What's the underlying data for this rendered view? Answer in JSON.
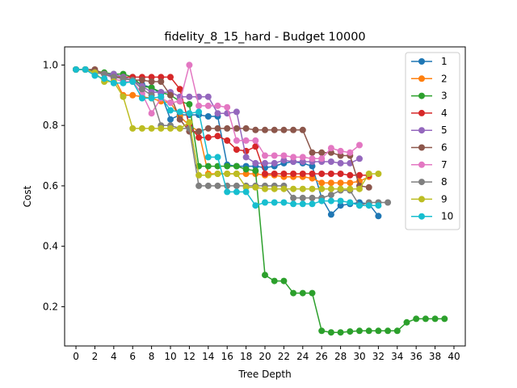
{
  "chart_data": {
    "type": "line",
    "title": "fidelity_8_15_hard - Budget  10000",
    "xlabel": "Tree Depth",
    "ylabel": "Cost",
    "xlim": [
      -1.2,
      41.2
    ],
    "ylim": [
      0.07,
      1.06
    ],
    "xticks": [
      0,
      2,
      4,
      6,
      8,
      10,
      12,
      14,
      16,
      18,
      20,
      22,
      24,
      26,
      28,
      30,
      32,
      34,
      36,
      38,
      40
    ],
    "yticks": [
      0.2,
      0.4,
      0.6,
      0.8,
      1.0
    ],
    "xtick_labels": [
      "0",
      "2",
      "4",
      "6",
      "8",
      "10",
      "12",
      "14",
      "16",
      "18",
      "20",
      "22",
      "24",
      "26",
      "28",
      "30",
      "32",
      "34",
      "36",
      "38",
      "40"
    ],
    "ytick_labels": [
      "0.2",
      "0.4",
      "0.6",
      "0.8",
      "1.0"
    ],
    "grid": false,
    "legend_position": "top-right",
    "series": [
      {
        "name": "1",
        "color": "#1f77b4",
        "x": [
          0,
          1,
          2,
          3,
          4,
          5,
          6,
          7,
          8,
          9,
          10,
          11,
          12,
          13,
          14,
          15,
          16,
          17,
          18,
          19,
          20,
          21,
          22,
          23,
          24,
          25,
          26,
          27,
          28,
          29,
          30,
          31,
          32
        ],
        "y": [
          0.985,
          0.985,
          0.975,
          0.97,
          0.965,
          0.955,
          0.95,
          0.935,
          0.925,
          0.905,
          0.82,
          0.835,
          0.835,
          0.835,
          0.83,
          0.83,
          0.67,
          0.665,
          0.665,
          0.665,
          0.66,
          0.665,
          0.675,
          0.68,
          0.675,
          0.665,
          0.56,
          0.505,
          0.535,
          0.54,
          0.545,
          0.54,
          0.5
        ]
      },
      {
        "name": "2",
        "color": "#ff7f0e",
        "x": [
          0,
          1,
          2,
          3,
          4,
          5,
          6,
          7,
          8,
          9,
          10,
          11,
          12,
          13,
          14,
          15,
          16,
          17,
          18,
          19,
          20,
          21,
          22,
          23,
          24,
          25,
          26,
          27,
          28,
          29,
          30,
          31
        ],
        "y": [
          0.985,
          0.985,
          0.975,
          0.97,
          0.96,
          0.9,
          0.9,
          0.895,
          0.89,
          0.88,
          0.875,
          0.83,
          0.8,
          0.78,
          0.64,
          0.64,
          0.64,
          0.64,
          0.64,
          0.64,
          0.635,
          0.635,
          0.63,
          0.63,
          0.63,
          0.625,
          0.61,
          0.61,
          0.61,
          0.61,
          0.615,
          0.63
        ]
      },
      {
        "name": "3",
        "color": "#2ca02c",
        "x": [
          0,
          1,
          2,
          3,
          4,
          5,
          6,
          7,
          8,
          9,
          10,
          11,
          12,
          13,
          14,
          15,
          16,
          17,
          18,
          19,
          20,
          21,
          22,
          23,
          24,
          25,
          26,
          27,
          28,
          29,
          30,
          31,
          32,
          33,
          34,
          35,
          36,
          37,
          38,
          39
        ],
        "y": [
          0.985,
          0.985,
          0.98,
          0.975,
          0.97,
          0.97,
          0.96,
          0.93,
          0.925,
          0.91,
          0.9,
          0.88,
          0.87,
          0.665,
          0.665,
          0.665,
          0.665,
          0.665,
          0.655,
          0.65,
          0.305,
          0.285,
          0.285,
          0.245,
          0.245,
          0.245,
          0.12,
          0.115,
          0.115,
          0.118,
          0.12,
          0.12,
          0.12,
          0.12,
          0.12,
          0.148,
          0.16,
          0.16,
          0.16,
          0.16
        ]
      },
      {
        "name": "4",
        "color": "#d62728",
        "x": [
          0,
          1,
          2,
          3,
          4,
          5,
          6,
          7,
          8,
          9,
          10,
          11,
          12,
          13,
          14,
          15,
          16,
          17,
          18,
          19,
          20,
          21,
          22,
          23,
          24,
          25,
          26,
          27,
          28,
          29,
          30,
          31
        ],
        "y": [
          0.985,
          0.985,
          0.975,
          0.97,
          0.96,
          0.96,
          0.96,
          0.96,
          0.96,
          0.96,
          0.96,
          0.92,
          0.8,
          0.76,
          0.76,
          0.765,
          0.75,
          0.72,
          0.715,
          0.73,
          0.64,
          0.64,
          0.64,
          0.64,
          0.64,
          0.64,
          0.64,
          0.64,
          0.64,
          0.635,
          0.635,
          0.635
        ]
      },
      {
        "name": "5",
        "color": "#9467bd",
        "x": [
          0,
          1,
          2,
          3,
          4,
          5,
          6,
          7,
          8,
          9,
          10,
          11,
          12,
          13,
          14,
          15,
          16,
          17,
          18,
          19,
          20,
          21,
          22,
          23,
          24,
          25,
          26,
          27,
          28,
          29,
          30
        ],
        "y": [
          0.985,
          0.985,
          0.975,
          0.97,
          0.97,
          0.96,
          0.95,
          0.93,
          0.91,
          0.91,
          0.91,
          0.895,
          0.895,
          0.895,
          0.895,
          0.84,
          0.84,
          0.845,
          0.695,
          0.675,
          0.675,
          0.675,
          0.685,
          0.68,
          0.68,
          0.68,
          0.68,
          0.68,
          0.675,
          0.675,
          0.69
        ]
      },
      {
        "name": "6",
        "color": "#8c564b",
        "x": [
          0,
          1,
          2,
          3,
          4,
          5,
          6,
          7,
          8,
          9,
          10,
          11,
          12,
          13,
          14,
          15,
          16,
          17,
          18,
          19,
          20,
          21,
          22,
          23,
          24,
          25,
          26,
          27,
          28,
          29,
          30,
          31
        ],
        "y": [
          0.985,
          0.985,
          0.985,
          0.97,
          0.96,
          0.955,
          0.95,
          0.95,
          0.945,
          0.945,
          0.9,
          0.82,
          0.78,
          0.78,
          0.79,
          0.79,
          0.79,
          0.79,
          0.79,
          0.785,
          0.785,
          0.785,
          0.785,
          0.785,
          0.785,
          0.71,
          0.71,
          0.71,
          0.7,
          0.7,
          0.6,
          0.595
        ]
      },
      {
        "name": "7",
        "color": "#e377c2",
        "x": [
          0,
          1,
          2,
          3,
          4,
          5,
          6,
          7,
          8,
          9,
          10,
          11,
          12,
          13,
          14,
          15,
          16,
          17,
          18,
          19,
          20,
          21,
          22,
          23,
          24,
          25,
          26,
          27,
          28,
          29,
          30
        ],
        "y": [
          0.985,
          0.985,
          0.975,
          0.97,
          0.955,
          0.945,
          0.945,
          0.905,
          0.84,
          0.89,
          0.875,
          0.88,
          1.0,
          0.865,
          0.865,
          0.865,
          0.86,
          0.75,
          0.75,
          0.75,
          0.7,
          0.7,
          0.7,
          0.695,
          0.695,
          0.69,
          0.69,
          0.725,
          0.715,
          0.71,
          0.735
        ]
      },
      {
        "name": "8",
        "color": "#7f7f7f",
        "x": [
          0,
          1,
          2,
          3,
          4,
          5,
          6,
          7,
          8,
          9,
          10,
          11,
          12,
          13,
          14,
          15,
          16,
          17,
          18,
          19,
          20,
          21,
          22,
          23,
          24,
          25,
          26,
          27,
          28,
          29,
          30,
          31,
          32,
          33
        ],
        "y": [
          0.985,
          0.985,
          0.975,
          0.97,
          0.96,
          0.955,
          0.95,
          0.92,
          0.9,
          0.8,
          0.8,
          0.79,
          0.79,
          0.6,
          0.6,
          0.6,
          0.6,
          0.6,
          0.6,
          0.6,
          0.6,
          0.6,
          0.6,
          0.56,
          0.56,
          0.56,
          0.56,
          0.57,
          0.585,
          0.585,
          0.535,
          0.545,
          0.545,
          0.545
        ]
      },
      {
        "name": "9",
        "color": "#bcbd22",
        "x": [
          0,
          1,
          2,
          3,
          4,
          5,
          6,
          7,
          8,
          9,
          10,
          11,
          12,
          13,
          14,
          15,
          16,
          17,
          18,
          19,
          20,
          21,
          22,
          23,
          24,
          25,
          26,
          27,
          28,
          29,
          30,
          31,
          32
        ],
        "y": [
          0.985,
          0.985,
          0.975,
          0.945,
          0.945,
          0.895,
          0.79,
          0.79,
          0.79,
          0.79,
          0.79,
          0.79,
          0.81,
          0.635,
          0.635,
          0.64,
          0.64,
          0.64,
          0.595,
          0.595,
          0.59,
          0.59,
          0.59,
          0.59,
          0.59,
          0.59,
          0.59,
          0.59,
          0.59,
          0.59,
          0.59,
          0.64,
          0.64
        ]
      },
      {
        "name": "10",
        "color": "#17becf",
        "x": [
          0,
          1,
          2,
          3,
          4,
          5,
          6,
          7,
          8,
          9,
          10,
          11,
          12,
          13,
          14,
          15,
          16,
          17,
          18,
          19,
          20,
          21,
          22,
          23,
          24,
          25,
          26,
          27,
          28,
          29,
          30,
          31,
          32
        ],
        "y": [
          0.985,
          0.985,
          0.965,
          0.955,
          0.94,
          0.94,
          0.945,
          0.89,
          0.89,
          0.895,
          0.85,
          0.845,
          0.84,
          0.845,
          0.695,
          0.695,
          0.58,
          0.58,
          0.58,
          0.535,
          0.545,
          0.545,
          0.545,
          0.54,
          0.54,
          0.54,
          0.55,
          0.55,
          0.55,
          0.545,
          0.535,
          0.535,
          0.535
        ]
      }
    ]
  }
}
